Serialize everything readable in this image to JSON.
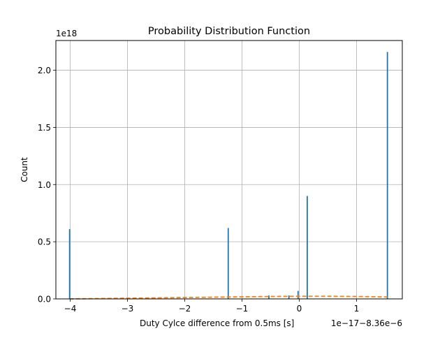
{
  "chart_data": {
    "type": "bar",
    "title": "Probability Distribution Function",
    "xlabel": "Duty Cylce difference from 0.5ms [s]",
    "ylabel": "Count",
    "y_scale_label": "1e18",
    "x_offset_label": "1e−17−8.36e−6",
    "xlim": [
      -4.25,
      1.8
    ],
    "ylim": [
      0,
      2.26
    ],
    "xticks": [
      -4,
      -3,
      -2,
      -1,
      0,
      1
    ],
    "xtick_labels": [
      "−4",
      "−3",
      "−2",
      "−1",
      "0",
      "1"
    ],
    "yticks": [
      0,
      0.5,
      1.0,
      1.5,
      2.0
    ],
    "ytick_labels": [
      "0.0",
      "0.5",
      "1.0",
      "1.5",
      "2.0"
    ],
    "grid": true,
    "bar_color": "#1f77b4",
    "bar_width": 0.022,
    "bars": [
      {
        "x": -4.01,
        "value": 0.61
      },
      {
        "x": -1.24,
        "value": 0.62
      },
      {
        "x": -0.53,
        "value": 0.03
      },
      {
        "x": -0.18,
        "value": 0.03
      },
      {
        "x": -0.02,
        "value": 0.07
      },
      {
        "x": 0.14,
        "value": 0.9
      },
      {
        "x": 1.54,
        "value": 2.16
      }
    ],
    "series": [
      {
        "style": "dashed",
        "color": "#ff7f0e",
        "x": [
          -4.01,
          -3.5,
          -3.0,
          -2.5,
          -2.0,
          -1.5,
          -1.0,
          -0.5,
          0.0,
          0.5,
          1.0,
          1.54
        ],
        "y": [
          0.0,
          0.003,
          0.006,
          0.009,
          0.012,
          0.015,
          0.018,
          0.021,
          0.023,
          0.023,
          0.021,
          0.017
        ]
      }
    ]
  }
}
